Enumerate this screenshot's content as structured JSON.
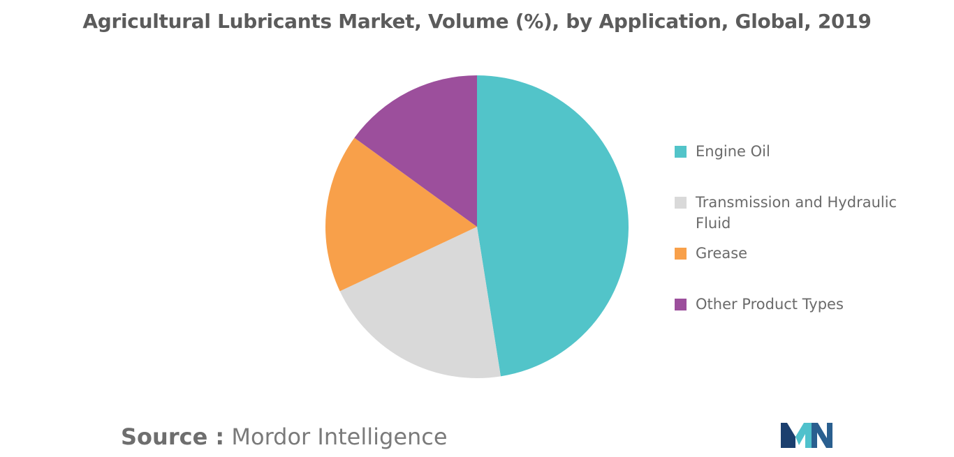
{
  "chart_data": {
    "type": "pie",
    "title": "Agricultural Lubricants Market, Volume (%), by Application, Global, 2019",
    "categories": [
      "Engine Oil",
      "Transmission and Hydraulic Fluid",
      "Grease",
      "Other Product Types"
    ],
    "values": [
      47.5,
      20.5,
      17.0,
      15.0
    ],
    "colors": [
      "#52c4c9",
      "#d9d9d9",
      "#f8a04a",
      "#9c4f9c"
    ],
    "legend_position": "right",
    "start_angle_deg": 0,
    "direction": "clockwise"
  },
  "source": {
    "label": "Source :",
    "value": "Mordor Intelligence"
  },
  "logo": {
    "icon": "mordor-intelligence-logo",
    "colors": [
      "#1b3f6e",
      "#4fc1cc"
    ]
  }
}
